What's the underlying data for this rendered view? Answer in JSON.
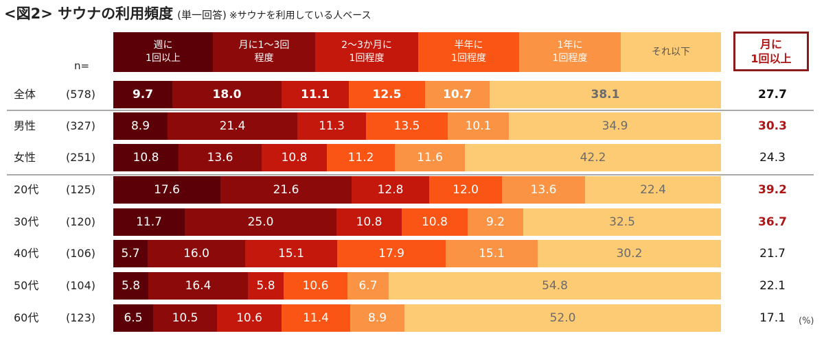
{
  "title": {
    "main": "<図2> サウナの利用頻度",
    "answer_type": "(単一回答)",
    "note": "※サウナを利用している人ベース"
  },
  "n_label": "n=",
  "summary_header": "月に\n1回以上",
  "unit": "(%)",
  "chart_data": {
    "type": "bar",
    "orientation": "horizontal-stacked-100",
    "title": "<図2> サウナの利用頻度",
    "xlim": [
      0,
      100
    ],
    "legend_placement": "top",
    "series": [
      {
        "name": "週に\n1回以上",
        "color": "#5c0008"
      },
      {
        "name": "月に1～3回\n程度",
        "color": "#8c0a0a"
      },
      {
        "name": "2～3か月に\n1回程度",
        "color": "#c4180d"
      },
      {
        "name": "半年に\n1回程度",
        "color": "#fa5515"
      },
      {
        "name": "1年に\n1回程度",
        "color": "#fa9444"
      },
      {
        "name": "それ以下",
        "color": "#fccb74",
        "text_color": "#6b6b6b"
      }
    ],
    "rows": [
      {
        "label": "全体",
        "n": "(578)",
        "values": [
          "9.7",
          "18.0",
          "11.1",
          "12.5",
          "10.7",
          "38.1"
        ],
        "summary": "27.7",
        "bold": true,
        "highlight": false
      },
      {
        "label": "男性",
        "n": "(327)",
        "values": [
          "8.9",
          "21.4",
          "11.3",
          "13.5",
          "10.1",
          "34.9"
        ],
        "summary": "30.3",
        "bold": false,
        "highlight": true
      },
      {
        "label": "女性",
        "n": "(251)",
        "values": [
          "10.8",
          "13.6",
          "10.8",
          "11.2",
          "11.6",
          "42.2"
        ],
        "summary": "24.3",
        "bold": false,
        "highlight": false
      },
      {
        "label": "20代",
        "n": "(125)",
        "values": [
          "17.6",
          "21.6",
          "12.8",
          "12.0",
          "13.6",
          "22.4"
        ],
        "summary": "39.2",
        "bold": false,
        "highlight": true
      },
      {
        "label": "30代",
        "n": "(120)",
        "values": [
          "11.7",
          "25.0",
          "10.8",
          "10.8",
          "9.2",
          "32.5"
        ],
        "summary": "36.7",
        "bold": false,
        "highlight": true
      },
      {
        "label": "40代",
        "n": "(106)",
        "values": [
          "5.7",
          "16.0",
          "15.1",
          "17.9",
          "15.1",
          "30.2"
        ],
        "summary": "21.7",
        "bold": false,
        "highlight": false
      },
      {
        "label": "50代",
        "n": "(104)",
        "values": [
          "5.8",
          "16.4",
          "5.8",
          "10.6",
          "6.7",
          "54.8"
        ],
        "summary": "22.1",
        "bold": false,
        "highlight": false
      },
      {
        "label": "60代",
        "n": "(123)",
        "values": [
          "6.5",
          "10.5",
          "10.6",
          "11.4",
          "8.9",
          "52.0"
        ],
        "summary": "17.1",
        "bold": false,
        "highlight": false
      }
    ]
  }
}
